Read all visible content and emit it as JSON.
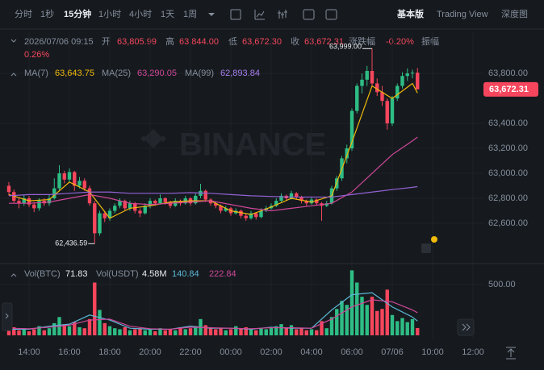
{
  "toolbar": {
    "intervals": [
      "分时",
      "1秒",
      "15分钟",
      "1小时",
      "4小时",
      "1天",
      "1周"
    ],
    "views": [
      "基本版",
      "Trading View",
      "深度图"
    ]
  },
  "header": {
    "time": "2026/07/06 09:15",
    "open_label": "开",
    "open": "63,805.99",
    "high_label": "高",
    "high": "63,844.00",
    "low_label": "低",
    "low": "63,672.30",
    "close_label": "收",
    "close": "63,672.31",
    "change_label": "涨跌幅",
    "change": "-0.20%",
    "amplitude_label": "振幅",
    "amplitude": "0.26%"
  },
  "chart_data": {
    "type": "candlestick",
    "watermark": "BINANCE",
    "up_color": "#2ebd85",
    "down_color": "#f6465d",
    "xlim": [
      12.56,
      36.56
    ],
    "xticks": [
      {
        "value": 14,
        "label": "14:00"
      },
      {
        "value": 16,
        "label": "16:00"
      },
      {
        "value": 18,
        "label": "18:00"
      },
      {
        "value": 20,
        "label": "20:00"
      },
      {
        "value": 22,
        "label": "22:00"
      },
      {
        "value": 24,
        "label": "00:00"
      },
      {
        "value": 26,
        "label": "02:00"
      },
      {
        "value": 28,
        "label": "04:00"
      },
      {
        "value": 30,
        "label": "06:00"
      },
      {
        "value": 32,
        "label": "07/06"
      },
      {
        "value": 34,
        "label": "10:00"
      },
      {
        "value": 36,
        "label": "12:00"
      }
    ],
    "ylim": [
      62290,
      64130
    ],
    "yticks": [
      {
        "value": 62600,
        "label": "62,600.00"
      },
      {
        "value": 62800,
        "label": "62,800.00"
      },
      {
        "value": 63000,
        "label": "63,000.00"
      },
      {
        "value": 63200,
        "label": "63,200.00"
      },
      {
        "value": 63400,
        "label": "63,400.00"
      },
      {
        "value": 63800,
        "label": "63,800.00"
      }
    ],
    "x": [
      13,
      13.25,
      13.5,
      13.75,
      14,
      14.25,
      14.5,
      14.75,
      15,
      15.25,
      15.5,
      15.75,
      16,
      16.25,
      16.5,
      16.75,
      17,
      17.25,
      17.5,
      17.75,
      18,
      18.25,
      18.5,
      18.75,
      19,
      19.25,
      19.5,
      19.75,
      20,
      20.25,
      20.5,
      20.75,
      21,
      21.25,
      21.5,
      21.75,
      22,
      22.25,
      22.5,
      22.75,
      23,
      23.25,
      23.5,
      23.75,
      24,
      24.25,
      24.5,
      24.75,
      25,
      25.25,
      25.5,
      25.75,
      26,
      26.25,
      26.5,
      26.75,
      27,
      27.25,
      27.5,
      27.75,
      28,
      28.25,
      28.5,
      28.75,
      29,
      29.25,
      29.5,
      29.75,
      30,
      30.25,
      30.5,
      30.75,
      31,
      31.25,
      31.5,
      31.75,
      32,
      32.25,
      32.5,
      32.75,
      33,
      33.25
    ],
    "candles": [
      [
        62900,
        62930,
        62820,
        62850
      ],
      [
        62850,
        62870,
        62760,
        62780
      ],
      [
        62780,
        62800,
        62720,
        62760
      ],
      [
        62760,
        62830,
        62740,
        62800
      ],
      [
        62800,
        62820,
        62730,
        62750
      ],
      [
        62750,
        62770,
        62690,
        62720
      ],
      [
        62720,
        62800,
        62700,
        62780
      ],
      [
        62780,
        62800,
        62740,
        62760
      ],
      [
        62760,
        62830,
        62740,
        62800
      ],
      [
        62800,
        62960,
        62790,
        62880
      ],
      [
        62880,
        63065,
        62860,
        63000
      ],
      [
        63000,
        63020,
        62920,
        62950
      ],
      [
        62950,
        63040,
        62930,
        63010
      ],
      [
        63010,
        63020,
        62860,
        62900
      ],
      [
        62900,
        62970,
        62880,
        62940
      ],
      [
        62940,
        62960,
        62860,
        62880
      ],
      [
        62880,
        62900,
        62740,
        62760
      ],
      [
        62760,
        62780,
        62436.59,
        62520
      ],
      [
        62520,
        62700,
        62500,
        62680
      ],
      [
        62680,
        62700,
        62610,
        62640
      ],
      [
        62640,
        62720,
        62620,
        62700
      ],
      [
        62700,
        62760,
        62680,
        62740
      ],
      [
        62740,
        62800,
        62720,
        62780
      ],
      [
        62780,
        62790,
        62700,
        62720
      ],
      [
        62720,
        62780,
        62700,
        62760
      ],
      [
        62760,
        62770,
        62680,
        62700
      ],
      [
        62700,
        62720,
        62650,
        62680
      ],
      [
        62680,
        62760,
        62670,
        62740
      ],
      [
        62740,
        62800,
        62720,
        62780
      ],
      [
        62780,
        62790,
        62740,
        62760
      ],
      [
        62760,
        62830,
        62750,
        62800
      ],
      [
        62800,
        62810,
        62750,
        62770
      ],
      [
        62770,
        62780,
        62720,
        62740
      ],
      [
        62740,
        62800,
        62730,
        62780
      ],
      [
        62780,
        62790,
        62740,
        62760
      ],
      [
        62760,
        62820,
        62750,
        62800
      ],
      [
        62800,
        62810,
        62740,
        62760
      ],
      [
        62760,
        62840,
        62750,
        62820
      ],
      [
        62820,
        62916,
        62800,
        62860
      ],
      [
        62860,
        62870,
        62770,
        62790
      ],
      [
        62790,
        62800,
        62740,
        62760
      ],
      [
        62760,
        62770,
        62720,
        62740
      ],
      [
        62740,
        62750,
        62680,
        62700
      ],
      [
        62700,
        62740,
        62690,
        62720
      ],
      [
        62720,
        62730,
        62660,
        62680
      ],
      [
        62680,
        62720,
        62670,
        62700
      ],
      [
        62700,
        62710,
        62640,
        62660
      ],
      [
        62660,
        62680,
        62620,
        62640
      ],
      [
        62640,
        62700,
        62630,
        62680
      ],
      [
        62680,
        62690,
        62630,
        62650
      ],
      [
        62650,
        62720,
        62640,
        62700
      ],
      [
        62700,
        62740,
        62690,
        62720
      ],
      [
        62720,
        62760,
        62710,
        62740
      ],
      [
        62740,
        62800,
        62730,
        62780
      ],
      [
        62780,
        62840,
        62770,
        62820
      ],
      [
        62820,
        62830,
        62780,
        62800
      ],
      [
        62800,
        62860,
        62790,
        62840
      ],
      [
        62840,
        62850,
        62790,
        62810
      ],
      [
        62810,
        62820,
        62760,
        62780
      ],
      [
        62780,
        62790,
        62740,
        62760
      ],
      [
        62760,
        62810,
        62750,
        62790
      ],
      [
        62790,
        62800,
        62740,
        62760
      ],
      [
        62760,
        62770,
        62620,
        62740
      ],
      [
        62740,
        62780,
        62730,
        62760
      ],
      [
        62760,
        62900,
        62750,
        62880
      ],
      [
        62880,
        62980,
        62860,
        62960
      ],
      [
        62960,
        63140,
        62940,
        63120
      ],
      [
        63120,
        63230,
        63080,
        63200
      ],
      [
        63200,
        63520,
        63180,
        63500
      ],
      [
        63500,
        63720,
        63480,
        63700
      ],
      [
        63700,
        63800,
        63640,
        63750
      ],
      [
        63750,
        63860,
        63700,
        63820
      ],
      [
        63820,
        63999,
        63700,
        63720
      ],
      [
        63720,
        63760,
        63620,
        63650
      ],
      [
        63650,
        63700,
        63540,
        63580
      ],
      [
        63580,
        63600,
        63350,
        63400
      ],
      [
        63400,
        63620,
        63380,
        63600
      ],
      [
        63600,
        63720,
        63580,
        63700
      ],
      [
        63700,
        63810,
        63680,
        63780
      ],
      [
        63780,
        63840,
        63740,
        63800
      ],
      [
        63800,
        63830,
        63760,
        63805.99
      ],
      [
        63805.99,
        63844,
        63672.3,
        63672.31
      ]
    ],
    "ma": [
      {
        "name": "MA(7)",
        "color": "#f0b90b",
        "legend_value": "63,643.75",
        "x": [
          13,
          14,
          15,
          16,
          17,
          18,
          19,
          20,
          21,
          22,
          23,
          24,
          25,
          26,
          27,
          28,
          29,
          30,
          31,
          32,
          33,
          33.25
        ],
        "values": [
          62830,
          62780,
          62790,
          62930,
          62850,
          62640,
          62720,
          62740,
          62770,
          62780,
          62780,
          62700,
          62670,
          62730,
          62800,
          62770,
          62820,
          63250,
          63700,
          63600,
          63720,
          63643.75
        ]
      },
      {
        "name": "MA(25)",
        "color": "#d0479a",
        "legend_value": "63,290.05",
        "x": [
          13,
          14,
          15,
          16,
          17,
          18,
          19,
          20,
          21,
          22,
          23,
          24,
          25,
          26,
          27,
          28,
          29,
          30,
          31,
          32,
          33,
          33.25
        ],
        "values": [
          62760,
          62760,
          62770,
          62800,
          62830,
          62800,
          62760,
          62750,
          62760,
          62770,
          62780,
          62750,
          62720,
          62700,
          62720,
          62740,
          62760,
          62850,
          63000,
          63150,
          63260,
          63290.05
        ]
      },
      {
        "name": "MA(99)",
        "color": "#9462d6",
        "legend_value": "62,893.84",
        "x": [
          13,
          14,
          15,
          16,
          17,
          18,
          19,
          20,
          21,
          22,
          23,
          24,
          25,
          26,
          27,
          28,
          29,
          30,
          31,
          32,
          33,
          33.25
        ],
        "values": [
          62820,
          62830,
          62830,
          62840,
          62850,
          62850,
          62840,
          62840,
          62840,
          62845,
          62840,
          62830,
          62820,
          62815,
          62810,
          62810,
          62810,
          62830,
          62850,
          62870,
          62888,
          62893.84
        ]
      }
    ],
    "high_marker": {
      "x": 31,
      "value": 63999,
      "label": "63,999.00"
    },
    "low_marker": {
      "x": 17.25,
      "value": 62436.59,
      "label": "62,436.59"
    },
    "last_price": {
      "value": 63672.31,
      "label": "63,672.31"
    },
    "volume": {
      "name": "Vol(BTC)",
      "legend_value": "71.83",
      "quote_name": "Vol(USDT)",
      "quote_value": "4.58M",
      "ylim": [
        0,
        643
      ],
      "yticks": [
        {
          "value": 500,
          "label": "500.00"
        }
      ],
      "values": [
        60,
        80,
        50,
        70,
        40,
        60,
        90,
        50,
        70,
        120,
        180,
        110,
        90,
        130,
        80,
        70,
        160,
        520,
        250,
        120,
        90,
        70,
        60,
        80,
        50,
        60,
        70,
        50,
        60,
        40,
        70,
        50,
        60,
        50,
        80,
        60,
        70,
        90,
        160,
        100,
        80,
        60,
        70,
        50,
        60,
        90,
        70,
        80,
        60,
        50,
        70,
        60,
        80,
        90,
        110,
        70,
        100,
        60,
        70,
        50,
        60,
        50,
        140,
        70,
        180,
        260,
        340,
        300,
        640,
        520,
        380,
        300,
        380,
        240,
        260,
        450,
        200,
        140,
        170,
        130,
        160,
        71.83
      ],
      "ma": [
        {
          "color": "#5bb7d6",
          "legend_value": "140.84",
          "x": [
            13,
            14,
            15,
            16,
            17,
            18,
            19,
            20,
            21,
            22,
            23,
            24,
            25,
            26,
            27,
            28,
            29,
            30,
            31,
            32,
            33,
            33.25
          ],
          "values": [
            60,
            60,
            90,
            110,
            200,
            150,
            70,
            60,
            60,
            90,
            70,
            70,
            60,
            80,
            70,
            70,
            250,
            400,
            420,
            280,
            180,
            140.84
          ]
        },
        {
          "color": "#d0479a",
          "legend_value": "222.84",
          "x": [
            13,
            14,
            15,
            16,
            17,
            18,
            19,
            20,
            21,
            22,
            23,
            24,
            25,
            26,
            27,
            28,
            29,
            30,
            31,
            32,
            33,
            33.25
          ],
          "values": [
            70,
            65,
            80,
            100,
            150,
            160,
            90,
            65,
            60,
            80,
            75,
            70,
            65,
            75,
            75,
            70,
            160,
            280,
            350,
            330,
            250,
            222.84
          ]
        }
      ]
    }
  }
}
